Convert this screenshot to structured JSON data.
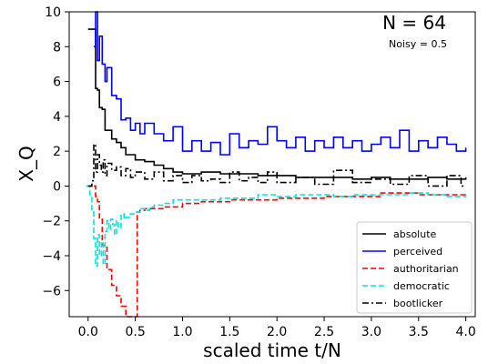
{
  "chart_data": {
    "type": "line",
    "xlabel": "scaled time t/N",
    "ylabel": "X_Q",
    "xlim": [
      -0.2,
      4.1
    ],
    "ylim": [
      -7.5,
      10
    ],
    "xticks": [
      "0.0",
      "0.5",
      "1.0",
      "1.5",
      "2.0",
      "2.5",
      "3.0",
      "3.5",
      "4.0"
    ],
    "yticks": [
      "−6",
      "−4",
      "−2",
      "0",
      "2",
      "4",
      "6",
      "8",
      "10"
    ],
    "grid": false,
    "legend_position": "lower-right",
    "annotations": {
      "n_label": "N = 64",
      "noise_label": "Noisy  = 0.5"
    },
    "series": [
      {
        "name": "absolute",
        "color": "#000000",
        "dash": "solid",
        "x": [
          0.0,
          0.06,
          0.08,
          0.1,
          0.12,
          0.15,
          0.18,
          0.2,
          0.25,
          0.3,
          0.35,
          0.4,
          0.5,
          0.6,
          0.7,
          0.8,
          0.9,
          1.0,
          1.2,
          1.4,
          1.6,
          1.8,
          2.0,
          2.2,
          2.4,
          2.6,
          2.8,
          3.0,
          3.2,
          3.4,
          3.6,
          3.8,
          4.0
        ],
        "y": [
          9.0,
          9.0,
          5.6,
          5.5,
          4.5,
          4.4,
          3.2,
          3.2,
          2.7,
          2.5,
          2.2,
          1.8,
          1.5,
          1.4,
          1.2,
          1.0,
          0.8,
          0.7,
          0.8,
          0.7,
          0.7,
          0.6,
          0.6,
          0.5,
          0.5,
          0.5,
          0.4,
          0.5,
          0.4,
          0.4,
          0.5,
          0.4,
          0.5
        ]
      },
      {
        "name": "perceived",
        "color": "#0000ff",
        "dash": "solid",
        "x": [
          0.06,
          0.08,
          0.1,
          0.12,
          0.15,
          0.18,
          0.2,
          0.25,
          0.3,
          0.35,
          0.4,
          0.45,
          0.5,
          0.55,
          0.6,
          0.7,
          0.8,
          0.9,
          1.0,
          1.1,
          1.2,
          1.3,
          1.4,
          1.5,
          1.6,
          1.7,
          1.8,
          1.9,
          2.0,
          2.1,
          2.2,
          2.3,
          2.4,
          2.5,
          2.6,
          2.7,
          2.8,
          2.9,
          3.0,
          3.1,
          3.2,
          3.3,
          3.4,
          3.5,
          3.6,
          3.7,
          3.8,
          3.9,
          4.0
        ],
        "y": [
          8.0,
          10.0,
          7.2,
          8.6,
          7.0,
          6.0,
          6.8,
          5.2,
          5.0,
          3.8,
          3.9,
          3.2,
          3.6,
          3.0,
          3.6,
          3.0,
          2.6,
          3.4,
          2.0,
          2.6,
          2.0,
          2.5,
          1.8,
          3.0,
          2.2,
          2.6,
          2.4,
          3.4,
          2.6,
          2.2,
          2.8,
          2.0,
          2.6,
          2.2,
          2.8,
          2.2,
          2.6,
          2.0,
          2.4,
          2.8,
          2.2,
          3.2,
          2.0,
          2.6,
          2.2,
          2.8,
          2.4,
          2.0,
          2.2
        ]
      },
      {
        "name": "authoritarian",
        "color": "#ff0000",
        "dash": "dashed",
        "x": [
          0.06,
          0.08,
          0.1,
          0.12,
          0.15,
          0.2,
          0.25,
          0.3,
          0.35,
          0.4,
          0.45,
          0.5,
          0.52,
          0.55,
          0.6,
          0.8,
          1.0,
          1.2,
          1.5,
          2.0,
          2.5,
          3.0,
          3.1,
          3.5,
          4.0
        ],
        "y": [
          0.0,
          -0.6,
          -0.9,
          -1.9,
          -3.4,
          -4.8,
          -5.7,
          -6.3,
          -6.9,
          -7.6,
          -7.6,
          -7.6,
          -1.5,
          -1.4,
          -1.3,
          -1.2,
          -1.0,
          -0.9,
          -0.8,
          -0.7,
          -0.6,
          -0.6,
          -0.4,
          -0.5,
          -0.5
        ]
      },
      {
        "name": "democratic",
        "color": "#00e5e5",
        "dash": "dashed",
        "x": [
          -0.02,
          0.02,
          0.04,
          0.06,
          0.08,
          0.1,
          0.12,
          0.14,
          0.16,
          0.18,
          0.2,
          0.22,
          0.24,
          0.26,
          0.28,
          0.3,
          0.32,
          0.35,
          0.38,
          0.4,
          0.45,
          0.5,
          0.55,
          0.6,
          0.65,
          0.7,
          0.8,
          0.9,
          1.0,
          1.2,
          1.4,
          1.6,
          1.8,
          2.0,
          2.2,
          2.4,
          2.6,
          2.8,
          3.0,
          3.2,
          3.4,
          3.6,
          3.8,
          4.0
        ],
        "y": [
          0.0,
          -0.6,
          -1.5,
          -3.0,
          -4.6,
          -2.8,
          -4.0,
          -3.2,
          -4.5,
          -2.6,
          -2.0,
          -2.5,
          -1.9,
          -2.2,
          -2.8,
          -2.0,
          -2.4,
          -1.6,
          -1.9,
          -1.8,
          -1.6,
          -1.5,
          -1.3,
          -1.4,
          -1.2,
          -1.1,
          -1.0,
          -0.8,
          -0.8,
          -0.8,
          -0.7,
          -0.7,
          -0.5,
          -0.6,
          -0.5,
          -0.5,
          -0.6,
          -0.5,
          -0.5,
          -0.5,
          -0.4,
          -0.5,
          -0.6,
          -0.5
        ]
      },
      {
        "name": "bootlicker",
        "color": "#000000",
        "dash": "dashdot",
        "x": [
          0.0,
          0.04,
          0.06,
          0.08,
          0.1,
          0.12,
          0.14,
          0.16,
          0.18,
          0.2,
          0.25,
          0.3,
          0.35,
          0.4,
          0.45,
          0.5,
          0.6,
          0.7,
          0.8,
          0.9,
          1.0,
          1.1,
          1.2,
          1.3,
          1.4,
          1.5,
          1.6,
          1.7,
          1.8,
          1.9,
          2.0,
          2.2,
          2.4,
          2.6,
          2.8,
          3.0,
          3.2,
          3.4,
          3.6,
          3.8,
          3.95,
          4.0
        ],
        "y": [
          0.0,
          0.3,
          2.4,
          0.8,
          1.8,
          1.2,
          0.8,
          1.5,
          0.6,
          1.3,
          0.9,
          1.1,
          0.6,
          1.0,
          0.5,
          0.8,
          0.4,
          0.8,
          0.3,
          0.6,
          0.2,
          0.6,
          0.3,
          0.4,
          0.2,
          0.8,
          0.3,
          0.5,
          0.2,
          0.8,
          0.2,
          0.5,
          0.1,
          0.9,
          0.2,
          0.4,
          0.1,
          0.6,
          0.0,
          0.6,
          0.0,
          0.0
        ]
      }
    ]
  }
}
